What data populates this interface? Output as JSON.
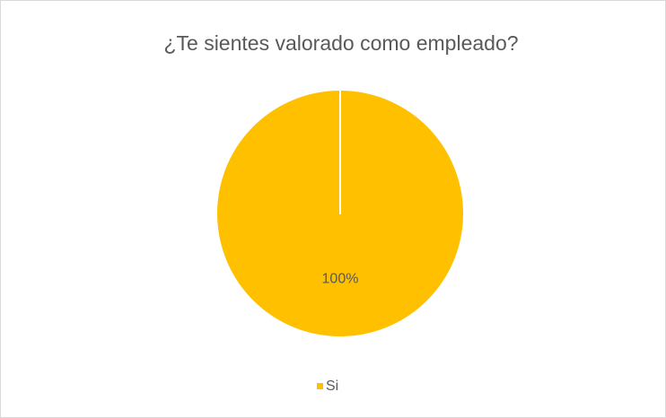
{
  "chart_data": {
    "type": "pie",
    "title": "¿Te sientes valorado como empleado?",
    "categories": [
      "Si"
    ],
    "values": [
      100
    ],
    "value_labels": [
      "100%"
    ],
    "colors": [
      "#FFC000"
    ],
    "legend": "bottom"
  }
}
